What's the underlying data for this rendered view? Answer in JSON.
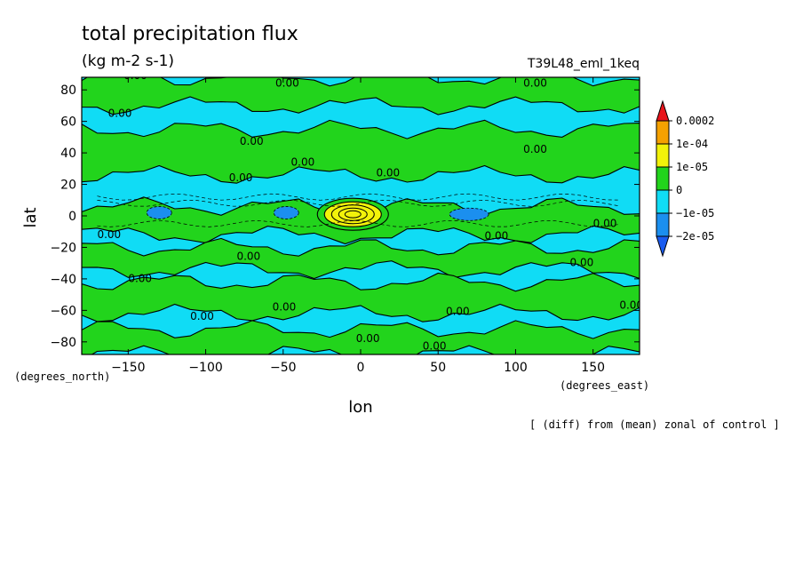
{
  "chart_data": {
    "type": "heatmap",
    "title": "total precipitation flux",
    "units": "(kg m-2 s-1)",
    "run_label": "T39L48_eml_1keq",
    "xlabel": "lon",
    "ylabel": "lat",
    "x_units": "(degrees_east)",
    "y_units": "(degrees_north)",
    "footnote": "[ (diff) from (mean) zonal of control ]",
    "xlim": [
      -180,
      180
    ],
    "ylim": [
      -88,
      88
    ],
    "x_ticks": [
      -150,
      -100,
      -50,
      0,
      50,
      100,
      150
    ],
    "y_ticks": [
      -80,
      -60,
      -40,
      -20,
      0,
      20,
      40,
      60,
      80
    ],
    "colorbar": {
      "levels": [
        "0.0002",
        "1e-04",
        "1e-05",
        "0",
        "-1e-05",
        "-2e-05"
      ],
      "colors": [
        "#e8141b",
        "#f5a100",
        "#f2f20a",
        "#22d41c",
        "#10dcf5",
        "#1b8fef",
        "#1a5cf0"
      ]
    },
    "colors": {
      "positive": "#22d41c",
      "negative": "#10dcf5",
      "strong_negative": "#1b8fef",
      "moderate_positive": "#f2f20a",
      "high_positive": "#f5a100"
    },
    "positive_bands_lat": [
      [
        70,
        88
      ],
      [
        26,
        55
      ],
      [
        -12,
        6
      ],
      [
        -34,
        -20
      ],
      [
        -62,
        -42
      ],
      [
        -88,
        -72
      ]
    ],
    "anomalies": [
      {
        "lon": -5,
        "lat": 1,
        "level": "1e-04"
      },
      {
        "lon": -48,
        "lat": 2,
        "level": "-2e-05"
      },
      {
        "lon": 70,
        "lat": 1,
        "level": "-2e-05"
      },
      {
        "lon": -130,
        "lat": 2,
        "level": "-2e-05"
      }
    ],
    "contour_label": "0.00",
    "contour_label_positions": [
      {
        "lon": -153,
        "lat": 87
      },
      {
        "lon": -55,
        "lat": 82
      },
      {
        "lon": -22,
        "lat": 88
      },
      {
        "lon": 105,
        "lat": 82
      },
      {
        "lon": -163,
        "lat": 63
      },
      {
        "lon": -78,
        "lat": 45
      },
      {
        "lon": -85,
        "lat": 22
      },
      {
        "lon": -45,
        "lat": 32
      },
      {
        "lon": 10,
        "lat": 25
      },
      {
        "lon": 105,
        "lat": 40
      },
      {
        "lon": -170,
        "lat": -14
      },
      {
        "lon": -80,
        "lat": -28
      },
      {
        "lon": -150,
        "lat": -42
      },
      {
        "lon": -57,
        "lat": -60
      },
      {
        "lon": -110,
        "lat": -66
      },
      {
        "lon": 55,
        "lat": -63
      },
      {
        "lon": 80,
        "lat": -15
      },
      {
        "lon": 150,
        "lat": -7
      },
      {
        "lon": 135,
        "lat": -32
      },
      {
        "lon": 167,
        "lat": -59
      },
      {
        "lon": -3,
        "lat": -80
      },
      {
        "lon": 40,
        "lat": -85
      }
    ]
  }
}
